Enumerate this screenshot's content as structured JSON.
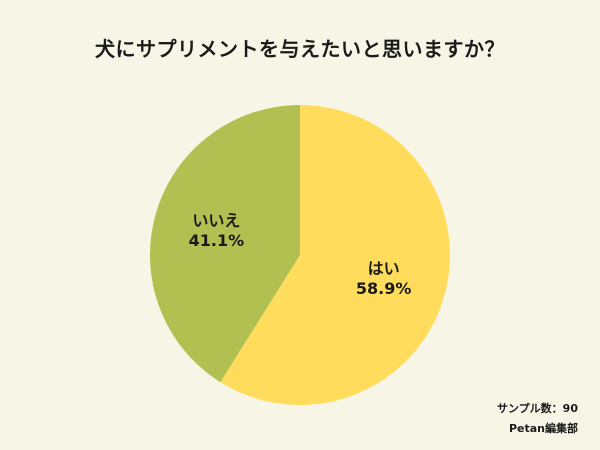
{
  "chart_data": {
    "type": "pie",
    "title": "犬にサプリメントを与えたいと思いますか？",
    "slices": [
      {
        "label": "はい",
        "percent_label": "58.9%",
        "value": 58.9,
        "color": "#ffdc5c"
      },
      {
        "label": "いいえ",
        "percent_label": "41.1%",
        "value": 41.1,
        "color": "#b1c050"
      }
    ],
    "sample_size_text": "サンプル数：90",
    "source_text": "Petan編集部"
  }
}
